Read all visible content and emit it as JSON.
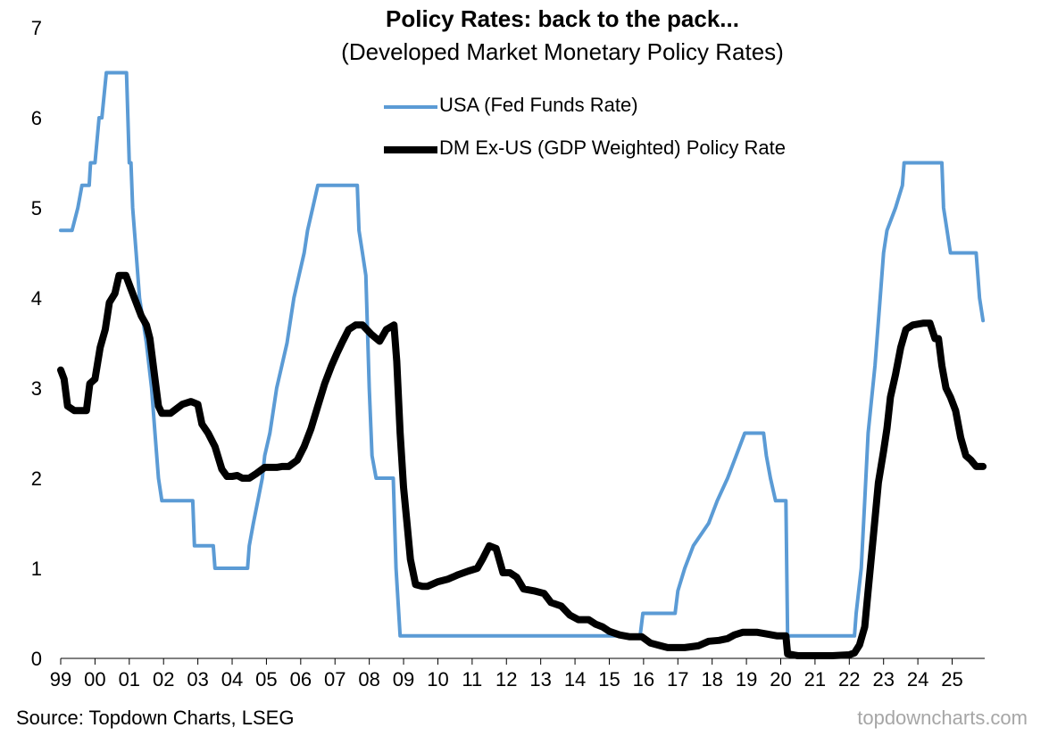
{
  "chart_data": {
    "type": "line",
    "title": "Policy Rates: back to the pack...",
    "subtitle": "(Developed Market Monetary Policy Rates)",
    "xlabel": "",
    "ylabel": "",
    "xlim": [
      1999.0,
      2025.95
    ],
    "ylim": [
      0,
      7
    ],
    "yticks": [
      0,
      1,
      2,
      3,
      4,
      5,
      6,
      7
    ],
    "xtick_labels": [
      "99",
      "00",
      "01",
      "02",
      "03",
      "04",
      "05",
      "06",
      "07",
      "08",
      "09",
      "10",
      "11",
      "12",
      "13",
      "14",
      "15",
      "16",
      "17",
      "18",
      "19",
      "20",
      "21",
      "22",
      "23",
      "24",
      "25"
    ],
    "grid": false,
    "legend_position": "top-center",
    "source": "Source: Topdown Charts, LSEG",
    "watermark": "topdowncharts.com",
    "series": [
      {
        "name": "USA (Fed Funds Rate)",
        "color": "#5b9bd5",
        "points": [
          [
            1999.0,
            4.75
          ],
          [
            1999.33,
            4.75
          ],
          [
            1999.5,
            5.0
          ],
          [
            1999.62,
            5.25
          ],
          [
            1999.83,
            5.25
          ],
          [
            1999.87,
            5.5
          ],
          [
            2000.0,
            5.5
          ],
          [
            2000.12,
            6.0
          ],
          [
            2000.2,
            6.0
          ],
          [
            2000.33,
            6.5
          ],
          [
            2000.92,
            6.5
          ],
          [
            2001.0,
            5.5
          ],
          [
            2001.05,
            5.5
          ],
          [
            2001.1,
            5.0
          ],
          [
            2001.2,
            4.5
          ],
          [
            2001.3,
            4.0
          ],
          [
            2001.4,
            3.75
          ],
          [
            2001.5,
            3.5
          ],
          [
            2001.65,
            3.0
          ],
          [
            2001.75,
            2.5
          ],
          [
            2001.85,
            2.0
          ],
          [
            2001.95,
            1.75
          ],
          [
            2002.85,
            1.75
          ],
          [
            2002.9,
            1.25
          ],
          [
            2003.45,
            1.25
          ],
          [
            2003.5,
            1.0
          ],
          [
            2004.45,
            1.0
          ],
          [
            2004.5,
            1.25
          ],
          [
            2004.62,
            1.5
          ],
          [
            2004.75,
            1.75
          ],
          [
            2004.88,
            2.0
          ],
          [
            2004.95,
            2.25
          ],
          [
            2005.1,
            2.5
          ],
          [
            2005.2,
            2.75
          ],
          [
            2005.3,
            3.0
          ],
          [
            2005.45,
            3.25
          ],
          [
            2005.6,
            3.5
          ],
          [
            2005.7,
            3.75
          ],
          [
            2005.8,
            4.0
          ],
          [
            2005.95,
            4.25
          ],
          [
            2006.1,
            4.5
          ],
          [
            2006.2,
            4.75
          ],
          [
            2006.35,
            5.0
          ],
          [
            2006.5,
            5.25
          ],
          [
            2007.65,
            5.25
          ],
          [
            2007.7,
            4.75
          ],
          [
            2007.8,
            4.5
          ],
          [
            2007.9,
            4.25
          ],
          [
            2008.0,
            3.0
          ],
          [
            2008.08,
            2.25
          ],
          [
            2008.2,
            2.0
          ],
          [
            2008.7,
            2.0
          ],
          [
            2008.78,
            1.0
          ],
          [
            2008.9,
            0.25
          ],
          [
            2015.9,
            0.25
          ],
          [
            2015.98,
            0.5
          ],
          [
            2016.92,
            0.5
          ],
          [
            2017.0,
            0.75
          ],
          [
            2017.2,
            1.0
          ],
          [
            2017.45,
            1.25
          ],
          [
            2017.9,
            1.5
          ],
          [
            2018.15,
            1.75
          ],
          [
            2018.45,
            2.0
          ],
          [
            2018.7,
            2.25
          ],
          [
            2018.95,
            2.5
          ],
          [
            2019.5,
            2.5
          ],
          [
            2019.58,
            2.25
          ],
          [
            2019.7,
            2.0
          ],
          [
            2019.85,
            1.75
          ],
          [
            2020.15,
            1.75
          ],
          [
            2020.2,
            0.25
          ],
          [
            2022.15,
            0.25
          ],
          [
            2022.2,
            0.5
          ],
          [
            2022.35,
            1.0
          ],
          [
            2022.45,
            1.75
          ],
          [
            2022.55,
            2.5
          ],
          [
            2022.75,
            3.25
          ],
          [
            2022.9,
            4.0
          ],
          [
            2023.0,
            4.5
          ],
          [
            2023.1,
            4.75
          ],
          [
            2023.35,
            5.0
          ],
          [
            2023.55,
            5.25
          ],
          [
            2023.6,
            5.5
          ],
          [
            2024.7,
            5.5
          ],
          [
            2024.75,
            5.0
          ],
          [
            2024.85,
            4.75
          ],
          [
            2024.95,
            4.5
          ],
          [
            2025.7,
            4.5
          ],
          [
            2025.8,
            4.0
          ],
          [
            2025.9,
            3.75
          ]
        ]
      },
      {
        "name": "DM Ex-US (GDP Weighted) Policy Rate",
        "color": "#000000",
        "points": [
          [
            1999.0,
            3.2
          ],
          [
            1999.1,
            3.1
          ],
          [
            1999.2,
            2.8
          ],
          [
            1999.4,
            2.75
          ],
          [
            1999.75,
            2.75
          ],
          [
            1999.85,
            3.05
          ],
          [
            2000.0,
            3.1
          ],
          [
            2000.15,
            3.45
          ],
          [
            2000.3,
            3.65
          ],
          [
            2000.42,
            3.95
          ],
          [
            2000.58,
            4.05
          ],
          [
            2000.7,
            4.25
          ],
          [
            2000.9,
            4.25
          ],
          [
            2001.05,
            4.1
          ],
          [
            2001.2,
            3.95
          ],
          [
            2001.35,
            3.8
          ],
          [
            2001.5,
            3.7
          ],
          [
            2001.6,
            3.55
          ],
          [
            2001.75,
            3.1
          ],
          [
            2001.85,
            2.8
          ],
          [
            2001.95,
            2.72
          ],
          [
            2002.2,
            2.72
          ],
          [
            2002.55,
            2.82
          ],
          [
            2002.8,
            2.85
          ],
          [
            2003.0,
            2.82
          ],
          [
            2003.12,
            2.6
          ],
          [
            2003.3,
            2.5
          ],
          [
            2003.5,
            2.35
          ],
          [
            2003.7,
            2.1
          ],
          [
            2003.85,
            2.02
          ],
          [
            2004.0,
            2.02
          ],
          [
            2004.15,
            2.03
          ],
          [
            2004.3,
            2.0
          ],
          [
            2004.5,
            2.0
          ],
          [
            2004.7,
            2.05
          ],
          [
            2004.95,
            2.12
          ],
          [
            2005.3,
            2.12
          ],
          [
            2005.45,
            2.13
          ],
          [
            2005.65,
            2.13
          ],
          [
            2005.9,
            2.2
          ],
          [
            2006.1,
            2.35
          ],
          [
            2006.3,
            2.55
          ],
          [
            2006.5,
            2.8
          ],
          [
            2006.7,
            3.05
          ],
          [
            2006.9,
            3.25
          ],
          [
            2007.05,
            3.38
          ],
          [
            2007.2,
            3.5
          ],
          [
            2007.4,
            3.65
          ],
          [
            2007.6,
            3.7
          ],
          [
            2007.8,
            3.7
          ],
          [
            2008.05,
            3.6
          ],
          [
            2008.3,
            3.52
          ],
          [
            2008.5,
            3.65
          ],
          [
            2008.72,
            3.7
          ],
          [
            2008.8,
            3.3
          ],
          [
            2008.9,
            2.5
          ],
          [
            2009.0,
            1.9
          ],
          [
            2009.1,
            1.5
          ],
          [
            2009.2,
            1.1
          ],
          [
            2009.35,
            0.82
          ],
          [
            2009.55,
            0.8
          ],
          [
            2009.7,
            0.8
          ],
          [
            2010.0,
            0.85
          ],
          [
            2010.3,
            0.88
          ],
          [
            2010.6,
            0.93
          ],
          [
            2010.9,
            0.97
          ],
          [
            2011.15,
            1.0
          ],
          [
            2011.3,
            1.1
          ],
          [
            2011.5,
            1.25
          ],
          [
            2011.7,
            1.22
          ],
          [
            2011.9,
            0.95
          ],
          [
            2012.1,
            0.95
          ],
          [
            2012.3,
            0.9
          ],
          [
            2012.5,
            0.77
          ],
          [
            2012.8,
            0.75
          ],
          [
            2013.1,
            0.72
          ],
          [
            2013.3,
            0.62
          ],
          [
            2013.6,
            0.58
          ],
          [
            2013.85,
            0.48
          ],
          [
            2014.1,
            0.43
          ],
          [
            2014.4,
            0.43
          ],
          [
            2014.6,
            0.38
          ],
          [
            2014.8,
            0.35
          ],
          [
            2015.0,
            0.3
          ],
          [
            2015.3,
            0.26
          ],
          [
            2015.6,
            0.24
          ],
          [
            2015.95,
            0.24
          ],
          [
            2016.2,
            0.17
          ],
          [
            2016.5,
            0.14
          ],
          [
            2016.7,
            0.12
          ],
          [
            2017.2,
            0.12
          ],
          [
            2017.6,
            0.14
          ],
          [
            2017.9,
            0.19
          ],
          [
            2018.2,
            0.2
          ],
          [
            2018.45,
            0.22
          ],
          [
            2018.65,
            0.26
          ],
          [
            2018.9,
            0.29
          ],
          [
            2019.3,
            0.29
          ],
          [
            2019.6,
            0.27
          ],
          [
            2019.9,
            0.25
          ],
          [
            2020.15,
            0.25
          ],
          [
            2020.2,
            0.05
          ],
          [
            2020.5,
            0.03
          ],
          [
            2021.0,
            0.03
          ],
          [
            2021.5,
            0.03
          ],
          [
            2022.0,
            0.04
          ],
          [
            2022.15,
            0.06
          ],
          [
            2022.3,
            0.15
          ],
          [
            2022.45,
            0.35
          ],
          [
            2022.55,
            0.75
          ],
          [
            2022.7,
            1.35
          ],
          [
            2022.85,
            1.95
          ],
          [
            2023.0,
            2.3
          ],
          [
            2023.1,
            2.55
          ],
          [
            2023.2,
            2.9
          ],
          [
            2023.35,
            3.15
          ],
          [
            2023.5,
            3.45
          ],
          [
            2023.65,
            3.65
          ],
          [
            2023.85,
            3.7
          ],
          [
            2024.15,
            3.72
          ],
          [
            2024.35,
            3.72
          ],
          [
            2024.5,
            3.55
          ],
          [
            2024.6,
            3.55
          ],
          [
            2024.7,
            3.25
          ],
          [
            2024.82,
            3.0
          ],
          [
            2024.95,
            2.9
          ],
          [
            2025.1,
            2.75
          ],
          [
            2025.25,
            2.45
          ],
          [
            2025.4,
            2.25
          ],
          [
            2025.55,
            2.2
          ],
          [
            2025.7,
            2.13
          ],
          [
            2025.9,
            2.13
          ]
        ]
      }
    ]
  }
}
